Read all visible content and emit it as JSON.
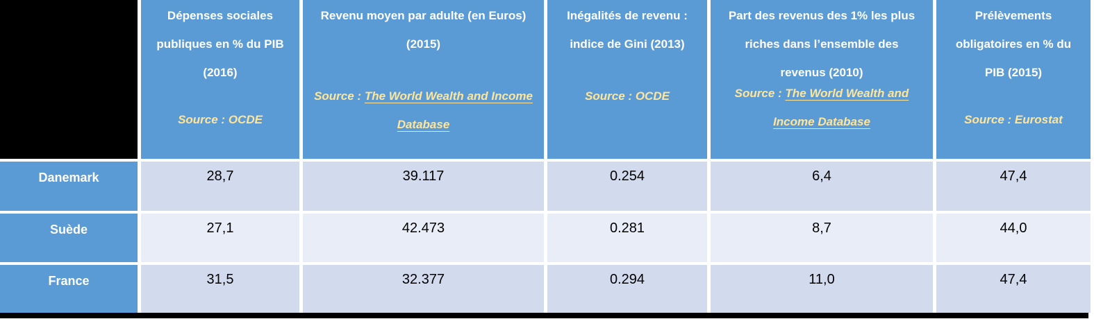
{
  "table": {
    "columns": [
      {
        "title": "Dépenses sociales publiques en % du PIB (2016)",
        "title_lines": [
          "Dépenses sociales",
          "publiques en % du PIB",
          "(2016)"
        ],
        "source_prefix": "Source : ",
        "source_text": "OCDE",
        "source_underlined": false
      },
      {
        "title": "Revenu moyen par adulte (en Euros) (2015)",
        "title_lines": [
          "Revenu moyen par adulte (en Euros)",
          "(2015)"
        ],
        "source_prefix": "Source : ",
        "source_text": "The World Wealth and Income Database",
        "source_underlined": true
      },
      {
        "title": "Inégalités de revenu : indice de Gini (2013)",
        "title_lines": [
          "Inégalités de revenu :",
          "indice de Gini (2013)"
        ],
        "source_prefix": "Source : ",
        "source_text": "OCDE",
        "source_underlined": false
      },
      {
        "title": "Part des revenus des 1% les plus riches dans l’ensemble des revenus (2010)",
        "title_lines": [
          "Part des revenus des 1% les plus",
          "riches dans l’ensemble des",
          "revenus (2010)"
        ],
        "source_prefix": "Source : ",
        "source_text": "The World Wealth and Income Database",
        "source_underlined": true
      },
      {
        "title": "Prélèvements obligatoires en % du PIB (2015)",
        "title_lines": [
          "Prélèvements",
          "obligatoires en % du",
          "PIB (2015)"
        ],
        "source_prefix": "Source : ",
        "source_text": "Eurostat",
        "source_underlined": false
      }
    ],
    "rows": [
      {
        "label": "Danemark",
        "values": [
          "28,7",
          "39.117",
          "0.254",
          "6,4",
          "47,4"
        ]
      },
      {
        "label": "Suède",
        "values": [
          "27,1",
          "42.473",
          "0.281",
          "8,7",
          "44,0"
        ]
      },
      {
        "label": "France",
        "values": [
          "31,5",
          "32.377",
          "0.294",
          "11,0",
          "47,4"
        ]
      }
    ]
  },
  "colors": {
    "accent-blue": "#5B9BD5",
    "row-dark": "#D2DBEE",
    "row-light": "#E9EDF8",
    "source-gold": "#FFE599",
    "black": "#000000"
  }
}
